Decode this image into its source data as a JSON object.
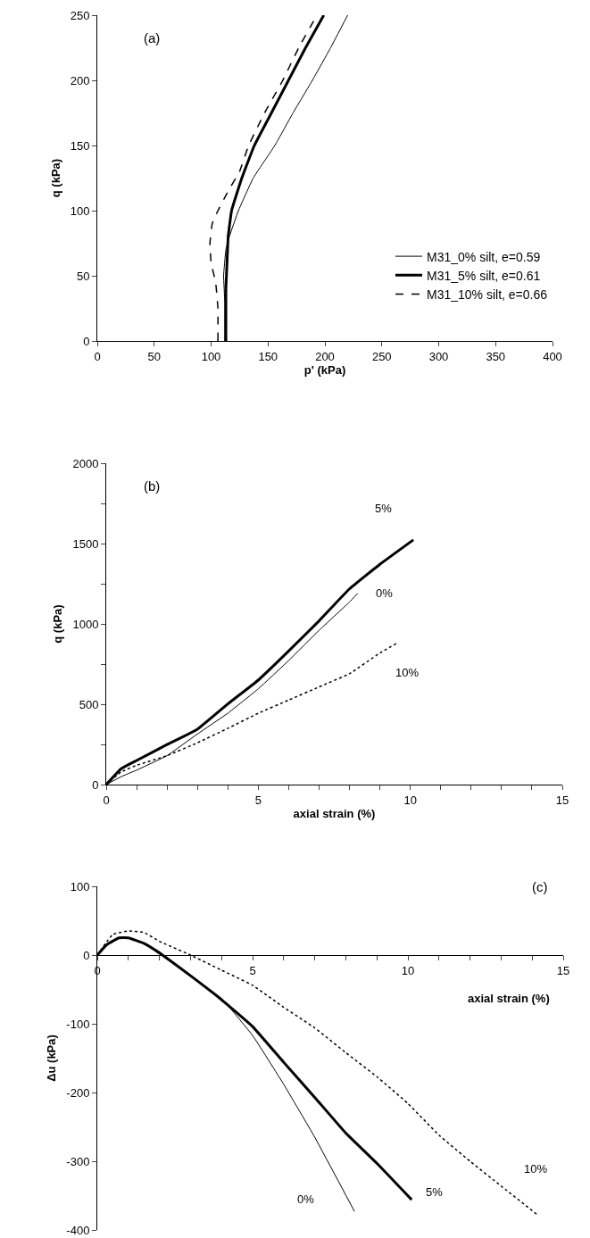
{
  "chart_data": [
    {
      "type": "line",
      "title": "(a)",
      "xlabel": "p' (kPa)",
      "ylabel": "q (kPa)",
      "xlim": [
        0,
        400
      ],
      "ylim": [
        0,
        250
      ],
      "xticks": [
        0,
        50,
        100,
        150,
        200,
        250,
        300,
        350,
        400
      ],
      "yticks": [
        0,
        50,
        100,
        150,
        200,
        250
      ],
      "legend": "bottom right",
      "series": [
        {
          "name": "M31_0% silt, e=0.59",
          "color": "#000000",
          "line_style": "solid",
          "x": [
            112,
            112,
            111,
            113,
            116,
            124,
            137,
            156,
            172,
            189,
            205,
            220
          ],
          "values": [
            0,
            30,
            50,
            70,
            80,
            100,
            125,
            150,
            175,
            200,
            225,
            250
          ]
        },
        {
          "name": "M31_5% silt, e=0.61",
          "color": "#000000",
          "line_style": "solid",
          "x": [
            113,
            113,
            114,
            115,
            118,
            127,
            138,
            153,
            168,
            183,
            199
          ],
          "values": [
            0,
            40,
            60,
            80,
            100,
            125,
            150,
            175,
            200,
            225,
            250
          ]
        },
        {
          "name": "M31_10% silt, e=0.66",
          "color": "#000000",
          "line_style": "dashed",
          "x": [
            106,
            106,
            104,
            100,
            99,
            101,
            106,
            115,
            125,
            133,
            147,
            163,
            177,
            193
          ],
          "values": [
            0,
            25,
            45,
            60,
            75,
            90,
            100,
            115,
            130,
            150,
            175,
            200,
            225,
            250
          ]
        }
      ]
    },
    {
      "type": "line",
      "title": "(b)",
      "xlabel": "axial strain (%)",
      "ylabel": "q (kPa)",
      "xlim": [
        0,
        15
      ],
      "ylim": [
        0,
        2000
      ],
      "legend": false,
      "xticks": [
        0,
        {
          "value": 1,
          "label": null
        },
        {
          "value": 2,
          "label": null
        },
        {
          "value": 3,
          "label": null
        },
        {
          "value": 4,
          "label": null
        },
        5,
        {
          "value": 6,
          "label": null
        },
        {
          "value": 7,
          "label": null
        },
        {
          "value": 8,
          "label": null
        },
        {
          "value": 9,
          "label": null
        },
        10,
        {
          "value": 11,
          "label": null
        },
        {
          "value": 12,
          "label": null
        },
        {
          "value": 13,
          "label": null
        },
        {
          "value": 14,
          "label": null
        },
        15
      ],
      "yticks": [
        0,
        {
          "value": 250,
          "label": null
        },
        500,
        {
          "value": 750,
          "label": null
        },
        1000,
        {
          "value": 1250,
          "label": null
        },
        1500,
        {
          "value": 1750,
          "label": null
        },
        2000
      ],
      "series": [
        {
          "name": "0%",
          "color": "#000000",
          "line_style": "solid",
          "x": [
            0,
            0.5,
            1,
            2,
            3,
            4,
            5,
            6,
            7,
            8,
            8.27
          ],
          "values": [
            0,
            50,
            90,
            180,
            315,
            444,
            596,
            772,
            960,
            1136,
            1190
          ]
        },
        {
          "name": "5%",
          "color": "#000000",
          "line_style": "solid",
          "x": [
            0,
            0.5,
            1,
            2,
            3,
            4,
            5,
            6,
            7,
            8,
            9,
            10.1
          ],
          "values": [
            0,
            100,
            150,
            249,
            345,
            502,
            650,
            831,
            1019,
            1218,
            1371,
            1523
          ]
        },
        {
          "name": "10%",
          "color": "#000000",
          "line_style": "dotted",
          "x": [
            0,
            0.5,
            1,
            2,
            3,
            4,
            5,
            6,
            7,
            8,
            9,
            9.54
          ],
          "values": [
            0,
            80,
            120,
            180,
            260,
            350,
            444,
            526,
            608,
            690,
            819,
            878
          ]
        }
      ]
    },
    {
      "type": "line",
      "title": "(c)",
      "xlabel": "axial strain (%)",
      "ylabel": "Δu (kPa)",
      "xlim": [
        0,
        15
      ],
      "ylim": [
        -400,
        100
      ],
      "legend": false,
      "xticks": [
        0,
        {
          "value": 1,
          "label": null
        },
        {
          "value": 2,
          "label": null
        },
        {
          "value": 3,
          "label": null
        },
        {
          "value": 4,
          "label": null
        },
        5,
        {
          "value": 6,
          "label": null
        },
        {
          "value": 7,
          "label": null
        },
        {
          "value": 8,
          "label": null
        },
        {
          "value": 9,
          "label": null
        },
        10,
        {
          "value": 11,
          "label": null
        },
        {
          "value": 12,
          "label": null
        },
        {
          "value": 13,
          "label": null
        },
        {
          "value": 14,
          "label": null
        },
        15
      ],
      "yticks": [
        -400,
        -300,
        -200,
        -100,
        0,
        100
      ],
      "series": [
        {
          "name": "0%",
          "color": "#000000",
          "line_style": "solid",
          "x": [
            0,
            0.3,
            0.7,
            1,
            1.5,
            2,
            3,
            4,
            5,
            6,
            7,
            8.28
          ],
          "values": [
            0,
            15,
            25,
            25,
            18,
            5,
            -30,
            -63,
            -117,
            -188,
            -265,
            -373
          ]
        },
        {
          "name": "5%",
          "color": "#000000",
          "line_style": "solid",
          "x": [
            0,
            0.3,
            0.7,
            1,
            1.5,
            2,
            3,
            4,
            5,
            6,
            7,
            8,
            9,
            10.12
          ],
          "values": [
            0,
            15,
            25,
            25,
            17,
            3,
            -30,
            -65,
            -104,
            -156,
            -207,
            -259,
            -303,
            -356
          ]
        },
        {
          "name": "10%",
          "color": "#000000",
          "line_style": "dotted",
          "x": [
            0,
            0.5,
            1,
            1.5,
            2,
            3,
            4,
            5,
            6,
            7,
            8,
            9,
            10,
            11,
            12,
            13,
            14.2
          ],
          "values": [
            0,
            30,
            35,
            33,
            20,
            0,
            -22,
            -44,
            -76,
            -106,
            -142,
            -177,
            -216,
            -262,
            -300,
            -336,
            -379
          ]
        }
      ]
    }
  ]
}
